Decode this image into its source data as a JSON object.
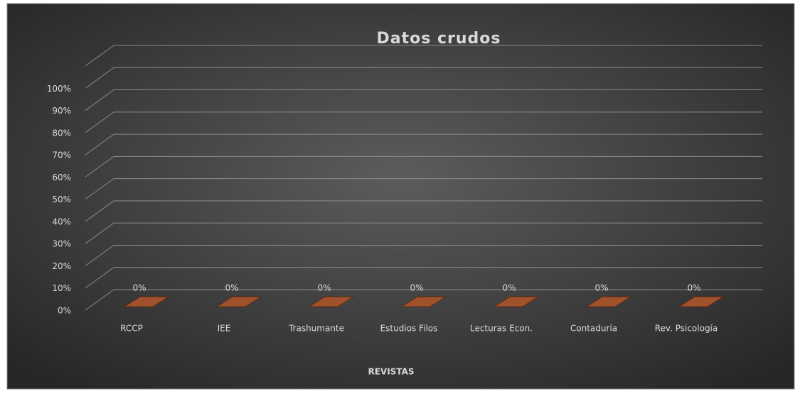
{
  "chart_data": {
    "type": "bar3d",
    "title": "Datos crudos",
    "x_label": "REVISTAS",
    "categories": [
      "RCCP",
      "IEE",
      "Trashumante",
      "Estudios Filos",
      "Lecturas Econ.",
      "Contaduría",
      "Rev. Psicología"
    ],
    "values": [
      0,
      0,
      0,
      0,
      0,
      0,
      0
    ],
    "value_labels": [
      "0%",
      "0%",
      "0%",
      "0%",
      "0%",
      "0%",
      "0%"
    ],
    "color": "#a0522d",
    "ylim": [
      0,
      110
    ],
    "yticks": [
      {
        "value": 0,
        "label": "0%"
      },
      {
        "value": 10,
        "label": "10%"
      },
      {
        "value": 20,
        "label": "20%"
      },
      {
        "value": 30,
        "label": "30%"
      },
      {
        "value": 40,
        "label": "40%"
      },
      {
        "value": 50,
        "label": "50%"
      },
      {
        "value": 60,
        "label": "60%"
      },
      {
        "value": 70,
        "label": "70%"
      },
      {
        "value": 80,
        "label": "80%"
      },
      {
        "value": 90,
        "label": "90%"
      },
      {
        "value": 100,
        "label": "100%"
      }
    ],
    "grid": true
  }
}
